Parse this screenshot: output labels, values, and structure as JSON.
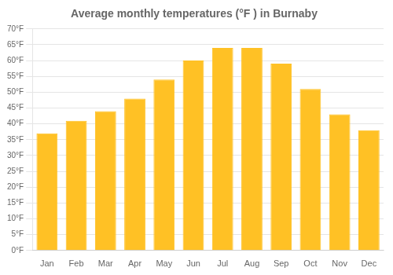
{
  "chart_data": {
    "type": "bar",
    "title": "Average monthly temperatures (°F ) in Burnaby",
    "categories": [
      "Jan",
      "Feb",
      "Mar",
      "Apr",
      "May",
      "Jun",
      "Jul",
      "Aug",
      "Sep",
      "Oct",
      "Nov",
      "Dec"
    ],
    "values": [
      37.0,
      41.0,
      44.0,
      48.0,
      54.0,
      60.0,
      64.0,
      64.0,
      59.0,
      51.0,
      43.0,
      38.0
    ],
    "color": "#FFC125",
    "ylim": [
      0,
      70
    ],
    "yticks": [
      {
        "value": 0,
        "label": "0°F"
      },
      {
        "value": 5,
        "label": "5°F"
      },
      {
        "value": 10,
        "label": "10°F"
      },
      {
        "value": 15,
        "label": "15°F"
      },
      {
        "value": 20,
        "label": "20°F"
      },
      {
        "value": 25,
        "label": "25°F"
      },
      {
        "value": 30,
        "label": "30°F"
      },
      {
        "value": 35,
        "label": "35°F"
      },
      {
        "value": 40,
        "label": "40°F"
      },
      {
        "value": 45,
        "label": "45°F"
      },
      {
        "value": 50,
        "label": "50°F"
      },
      {
        "value": 55,
        "label": "55°F"
      },
      {
        "value": 60,
        "label": "60°F"
      },
      {
        "value": 65,
        "label": "65°F"
      },
      {
        "value": 70,
        "label": "70°F"
      }
    ],
    "grid": true
  }
}
